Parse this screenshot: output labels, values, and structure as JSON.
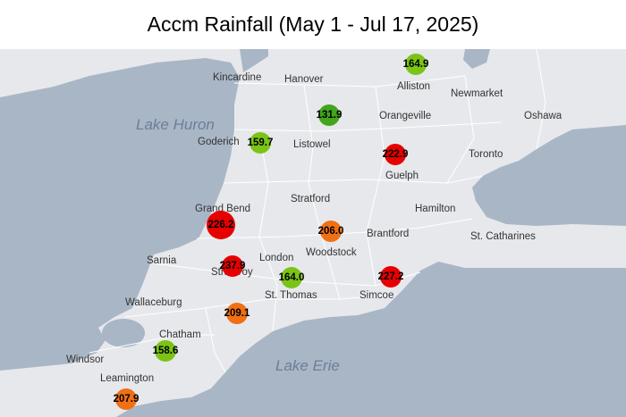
{
  "title": "Accm Rainfall (May 1 - Jul 17, 2025)",
  "lakes": [
    {
      "name": "Lake Huron"
    },
    {
      "name": "Lake Erie"
    }
  ],
  "cities": [
    "Kincardine",
    "Hanover",
    "Alliston",
    "Newmarket",
    "Oshawa",
    "Orangeville",
    "Goderich",
    "Listowel",
    "Toronto",
    "Guelph",
    "Grand Bend",
    "Stratford",
    "Hamilton",
    "Woodstock",
    "Brantford",
    "St. Catharines",
    "Sarnia",
    "London",
    "Strathroy",
    "Wallaceburg",
    "St. Thomas",
    "Simcoe",
    "Chatham",
    "Windsor",
    "Leamington"
  ],
  "colors": {
    "high": "#e60000",
    "medium": "#f07014",
    "low": "#7bc416",
    "lowest": "#42a51c",
    "water": "#a9b6c6",
    "land": "#e7e8ec"
  },
  "stations": [
    {
      "value": "164.9",
      "level": "low"
    },
    {
      "value": "131.9",
      "level": "lowest"
    },
    {
      "value": "159.7",
      "level": "low"
    },
    {
      "value": "222.9",
      "level": "high"
    },
    {
      "value": "226.2",
      "level": "high"
    },
    {
      "value": "206.0",
      "level": "medium"
    },
    {
      "value": "237.9",
      "level": "high"
    },
    {
      "value": "164.0",
      "level": "low"
    },
    {
      "value": "227.2",
      "level": "high"
    },
    {
      "value": "209.1",
      "level": "medium"
    },
    {
      "value": "158.6",
      "level": "low"
    },
    {
      "value": "207.9",
      "level": "medium"
    }
  ]
}
